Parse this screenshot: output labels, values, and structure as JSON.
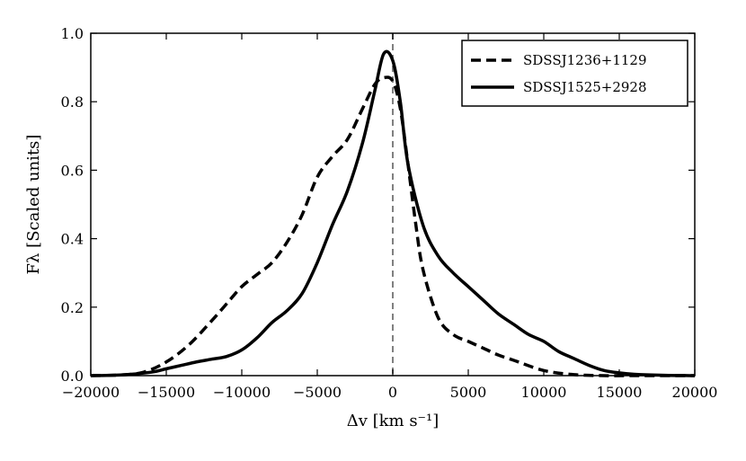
{
  "chart_data": {
    "type": "line",
    "title": "",
    "xlabel": "Δv [km s⁻¹]",
    "ylabel": "Fλ [Scaled units]",
    "xlim": [
      -20000,
      20000
    ],
    "ylim": [
      0.0,
      1.0
    ],
    "xticks": [
      -20000,
      -15000,
      -10000,
      -5000,
      0,
      5000,
      10000,
      15000,
      20000
    ],
    "xtick_labels": [
      "−20000",
      "−15000",
      "−10000",
      "−5000",
      "0",
      "5000",
      "10000",
      "15000",
      "20000"
    ],
    "yticks": [
      0.0,
      0.2,
      0.4,
      0.6,
      0.8,
      1.0
    ],
    "ytick_labels": [
      "0.0",
      "0.2",
      "0.4",
      "0.6",
      "0.8",
      "1.0"
    ],
    "grid": false,
    "legend_position": "top-right",
    "vertical_line": {
      "x": 0,
      "style": "dashed",
      "color": "#808080"
    },
    "series": [
      {
        "name": "SDSSJ1236+1129",
        "style": "dashed",
        "color": "#000000",
        "x": [
          -20000,
          -18000,
          -16500,
          -15000,
          -13500,
          -12000,
          -11000,
          -10000,
          -9000,
          -8000,
          -7000,
          -6000,
          -5000,
          -4000,
          -3000,
          -2000,
          -1200,
          -600,
          0,
          500,
          1000,
          1500,
          2000,
          3000,
          4000,
          5000,
          6000,
          7000,
          8000,
          10000,
          12000,
          14000,
          16000,
          20000
        ],
        "y": [
          0.0,
          0.002,
          0.01,
          0.04,
          0.09,
          0.16,
          0.21,
          0.26,
          0.295,
          0.33,
          0.39,
          0.47,
          0.58,
          0.64,
          0.69,
          0.78,
          0.85,
          0.87,
          0.86,
          0.78,
          0.62,
          0.45,
          0.31,
          0.17,
          0.12,
          0.1,
          0.08,
          0.06,
          0.045,
          0.015,
          0.003,
          0.0,
          0.0,
          0.0
        ]
      },
      {
        "name": "SDSSJ1525+2928",
        "style": "solid",
        "color": "#000000",
        "x": [
          -20000,
          -18000,
          -16000,
          -15000,
          -14000,
          -13000,
          -12000,
          -11000,
          -10000,
          -9000,
          -8000,
          -7000,
          -6000,
          -5000,
          -4000,
          -3000,
          -2000,
          -1200,
          -600,
          0,
          500,
          1000,
          2000,
          3000,
          4000,
          5000,
          6000,
          7000,
          8000,
          9000,
          10000,
          11000,
          12000,
          13000,
          14000,
          15000,
          16000,
          18000,
          20000
        ],
        "y": [
          0.0,
          0.002,
          0.01,
          0.02,
          0.03,
          0.04,
          0.048,
          0.056,
          0.075,
          0.11,
          0.155,
          0.19,
          0.24,
          0.33,
          0.44,
          0.54,
          0.68,
          0.83,
          0.94,
          0.92,
          0.8,
          0.62,
          0.44,
          0.35,
          0.3,
          0.26,
          0.22,
          0.18,
          0.15,
          0.12,
          0.1,
          0.07,
          0.05,
          0.03,
          0.015,
          0.008,
          0.004,
          0.001,
          0.0
        ]
      }
    ]
  }
}
